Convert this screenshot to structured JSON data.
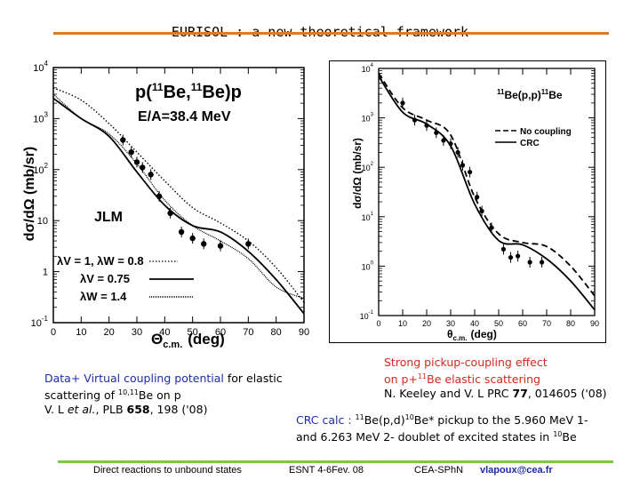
{
  "slide": {
    "title": "EURISOL : a new theoretical framework",
    "accent_top": "#e07a22",
    "accent_bottom": "#7ac943"
  },
  "left_plot": {
    "title_line1": "p(",
    "title_sup1": "11",
    "title_mid": "Be,",
    "title_sup2": "11",
    "title_end": "Be)p",
    "energy": "E/A=38.4 MeV",
    "model": "JLM",
    "ylabel": "dσ/dΩ (mb/sr)",
    "xlabel_main": "Θ",
    "xlabel_sub": "c.m.",
    "xlabel_unit": "(deg)",
    "yticks": [
      {
        "base": "10",
        "exp": "4"
      },
      {
        "base": "10",
        "exp": "3"
      },
      {
        "base": "10",
        "exp": "2"
      },
      {
        "base": "10",
        "exp": ""
      },
      {
        "base": "1",
        "exp": ""
      },
      {
        "base": "10",
        "exp": "-1"
      }
    ],
    "xticks": [
      "0",
      "10",
      "20",
      "30",
      "40",
      "50",
      "60",
      "70",
      "80",
      "90"
    ],
    "legend": [
      {
        "label": "λV = 1, λW = 0.8",
        "style": "dotted"
      },
      {
        "label": "λV = 0.75",
        "style": "solid"
      },
      {
        "label": "λW = 1.4",
        "style": "dense-dotted"
      }
    ]
  },
  "right_plot": {
    "reaction": "Be(p,p)",
    "reaction_sup1": "11",
    "reaction_sup2": "11",
    "reaction_end": "Be",
    "ylabel": "dσ/dΩ (mb/sr)",
    "xlabel_main": "θ",
    "xlabel_sub": "c.m.",
    "xlabel_unit": "(deg)",
    "yticks": [
      {
        "base": "10",
        "exp": "4"
      },
      {
        "base": "10",
        "exp": "3"
      },
      {
        "base": "10",
        "exp": "2"
      },
      {
        "base": "10",
        "exp": "1"
      },
      {
        "base": "10",
        "exp": "0"
      },
      {
        "base": "10",
        "exp": "-1"
      }
    ],
    "xticks": [
      "0",
      "10",
      "20",
      "30",
      "40",
      "50",
      "60",
      "70",
      "80",
      "90"
    ],
    "legend": [
      {
        "label": "No coupling",
        "style": "dashed"
      },
      {
        "label": "CRC",
        "style": "solid"
      }
    ]
  },
  "chart_data": [
    {
      "type": "scatter",
      "xlabel": "Θc.m. (deg)",
      "ylabel": "dσ/dΩ (mb/sr)",
      "xlim": [
        0,
        90
      ],
      "ylim": [
        0.1,
        10000
      ],
      "y_scale": "log",
      "series": [
        {
          "name": "data",
          "x": [
            25,
            28,
            30,
            32,
            35,
            38,
            42,
            46,
            50,
            54,
            60,
            70
          ],
          "y": [
            380,
            220,
            140,
            110,
            80,
            30,
            14,
            6,
            4.5,
            3.5,
            3.2,
            3.5
          ]
        },
        {
          "name": "λV = 1, λW = 0.8",
          "x": [
            0,
            10,
            20,
            30,
            40,
            50,
            60,
            70,
            80,
            90
          ],
          "y": [
            4000,
            2300,
            800,
            220,
            60,
            18,
            9,
            4,
            1.2,
            0.25
          ]
        },
        {
          "name": "λV = 0.75",
          "x": [
            0,
            10,
            20,
            30,
            40,
            50,
            60,
            70,
            80,
            90
          ],
          "y": [
            2500,
            1000,
            450,
            90,
            20,
            8,
            6,
            2.5,
            0.7,
            0.15
          ]
        },
        {
          "name": "λW = 1.4",
          "x": [
            0,
            10,
            20,
            30,
            40,
            50,
            60,
            70,
            80,
            90
          ],
          "y": [
            3000,
            1000,
            500,
            130,
            25,
            8,
            4,
            1.8,
            0.5,
            0.3
          ]
        }
      ]
    },
    {
      "type": "scatter",
      "xlabel": "θc.m. (deg)",
      "ylabel": "dσ/dΩ (mb/sr)",
      "xlim": [
        0,
        90
      ],
      "ylim": [
        0.1,
        10000
      ],
      "y_scale": "log",
      "series": [
        {
          "name": "data",
          "x": [
            10,
            15,
            20,
            24,
            27,
            30,
            33,
            35,
            38,
            41,
            43,
            47,
            52,
            55,
            58,
            63,
            68
          ],
          "y": [
            2000,
            900,
            700,
            500,
            350,
            300,
            200,
            110,
            80,
            25,
            13,
            6,
            2.2,
            1.5,
            1.6,
            1.2,
            1.2
          ]
        },
        {
          "name": "No coupling",
          "x": [
            0,
            10,
            20,
            30,
            40,
            50,
            60,
            70,
            80,
            90
          ],
          "y": [
            8000,
            1600,
            900,
            450,
            25,
            4.5,
            3,
            2.5,
            1,
            0.25
          ]
        },
        {
          "name": "CRC",
          "x": [
            0,
            10,
            20,
            30,
            40,
            50,
            60,
            70,
            80,
            90
          ],
          "y": [
            7000,
            1300,
            750,
            270,
            18,
            3.3,
            2.7,
            1.4,
            0.5,
            0.13
          ]
        }
      ]
    }
  ],
  "captions": {
    "left_pre": "Data+ Virtual coupling potential",
    "left_mid": " for elastic scattering of ",
    "left_sup": "10,11",
    "left_after_sup": "Be on p",
    "left_ref_a": "V. L ",
    "left_ref_etal": "et al.",
    "left_ref_b": ", PLB ",
    "left_ref_vol": "658",
    "left_ref_c": ", 198 ('08)",
    "right_line1": "Strong pickup-coupling effect",
    "right_line2_a": "on p+",
    "right_line2_sup": "11",
    "right_line2_b": "Be  elastic scattering",
    "right_line3_a": "N. Keeley and V. L PRC ",
    "right_line3_vol": "77",
    "right_line3_b": ", 014605 ('08)",
    "crc_a": "CRC calc :",
    "crc_sup1": "11",
    "crc_b": "Be(p,d)",
    "crc_sup2": "10",
    "crc_c": "Be* pickup to  the 5.960 MeV 1-",
    "crc_line2_a": "and 6.263 MeV 2- doublet of excited states in ",
    "crc_sup3": "10",
    "crc_line2_b": "Be"
  },
  "footer": {
    "left": "Direct reactions to unbound states",
    "center": "ESNT 4-6Fev. 08",
    "right_org": "CEA-SPhN",
    "right_email": "vlapoux@cea.fr"
  }
}
